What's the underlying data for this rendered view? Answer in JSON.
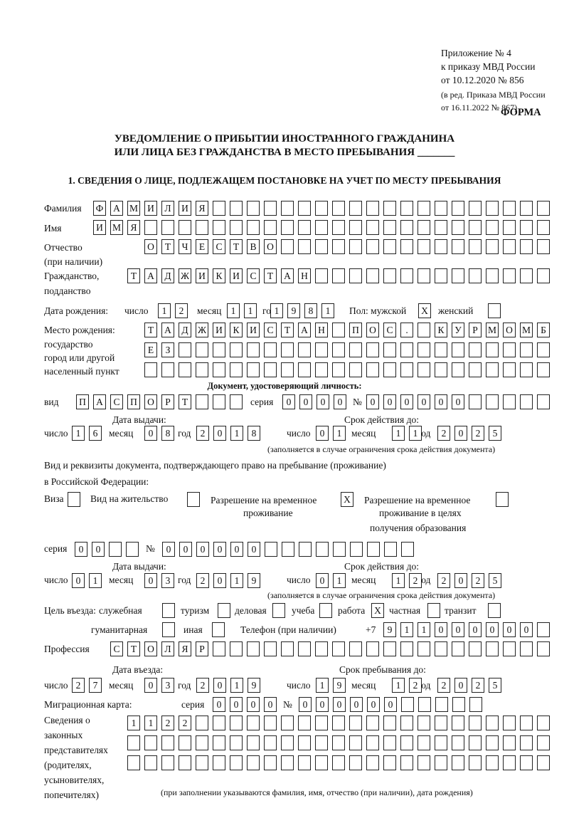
{
  "header": {
    "appendix": [
      "Приложение № 4",
      "к приказу МВД России",
      "от 10.12.2020 № 856"
    ],
    "revision": [
      "(в ред. Приказа МВД России",
      "от 16.11.2022 № 867)"
    ],
    "form_label": "ФОРМА",
    "title_line1": "УВЕДОМЛЕНИЕ О ПРИБЫТИИ ИНОСТРАННОГО ГРАЖДАНИНА",
    "title_line2": "ИЛИ ЛИЦА БЕЗ ГРАЖДАНСТВА В МЕСТО ПРЕБЫВАНИЯ _______",
    "section1": "1. СВЕДЕНИЯ О ЛИЦЕ, ПОДЛЕЖАЩЕМ ПОСТАНОВКЕ НА УЧЕТ ПО МЕСТУ ПРЕБЫВАНИЯ"
  },
  "person": {
    "surname_label": "Фамилия",
    "surname": "ФАМИЛИЯ",
    "name_label": "Имя",
    "name": "ИМЯ",
    "patronymic_label": "Отчество",
    "patronymic_label2": "(при наличии)",
    "patronymic": "ОТЧЕСТВО",
    "citizenship_label": "Гражданство,",
    "citizenship_label2": "подданство",
    "citizenship": "ТАДЖИКИСТАН",
    "birth_label": "Дата рождения:",
    "day_label": "число",
    "month_label": "месяц",
    "year_label": "год",
    "birth_day": "12",
    "birth_month": "11",
    "birth_year": "1981",
    "sex_label": "Пол: мужской",
    "male": "X",
    "female_label": "женский",
    "female": "",
    "birthplace_label": [
      "Место рождения:",
      "государство",
      "город или другой",
      "населенный пункт"
    ],
    "birthplace": [
      "ТАДЖИКИСТАН ПОС. КУРМОМБ",
      "ЕЗ",
      ""
    ]
  },
  "id_doc": {
    "heading": "Документ, удостоверяющий личность:",
    "type_label": "вид",
    "type": "ПАСПОРТ",
    "series_label": "серия",
    "series": "0000",
    "number_label": "№",
    "number": "000000",
    "issue_label": "Дата выдачи:",
    "issue_day": "16",
    "issue_month": "08",
    "issue_year": "2018",
    "valid_label": "Срок действия до:",
    "valid_day": "01",
    "valid_month": "11",
    "valid_year": "2025",
    "note": "(заполняется в случае ограничения срока действия документа)"
  },
  "stay_doc": {
    "heading1": "Вид и реквизиты документа, подтверждающего право на пребывание (проживание)",
    "heading2": "в Российской Федерации:",
    "visa_label": "Виза",
    "visa": "",
    "residence_label": "Вид на жительство",
    "residence": "",
    "trp_label": [
      "Разрешение на временное",
      "проживание"
    ],
    "trp": "X",
    "trp_edu_label": [
      "Разрешение на временное",
      "проживание в целях",
      "получения образования"
    ],
    "trp_edu": "",
    "series_label": "серия",
    "series": "00",
    "number_label": "№",
    "number": "000000",
    "issue_label": "Дата выдачи:",
    "issue_day": "01",
    "issue_month": "03",
    "issue_year": "2019",
    "valid_label": "Срок действия до:",
    "valid_day": "01",
    "valid_month": "12",
    "valid_year": "2025",
    "note": "(заполняется в случае ограничения срока действия документа)"
  },
  "purpose": {
    "label": "Цель въезда:",
    "options": [
      {
        "label": "служебная",
        "mark": ""
      },
      {
        "label": "туризм",
        "mark": ""
      },
      {
        "label": "деловая",
        "mark": ""
      },
      {
        "label": "учеба",
        "mark": ""
      },
      {
        "label": "работа",
        "mark": "X"
      },
      {
        "label": "частная",
        "mark": ""
      },
      {
        "label": "транзит",
        "mark": ""
      },
      {
        "label": "гуманитарная",
        "mark": ""
      },
      {
        "label": "иная",
        "mark": ""
      }
    ],
    "phone_label": "Телефон (при наличии)",
    "phone_prefix": "+7",
    "phone": "911000000"
  },
  "profession": {
    "label": "Профессия",
    "value": "СТОЛЯР"
  },
  "entry": {
    "entry_label": "Дата въезда:",
    "entry_day": "27",
    "entry_month": "03",
    "entry_year": "2019",
    "stay_label": "Срок пребывания до:",
    "stay_day": "19",
    "stay_month": "12",
    "stay_year": "2025"
  },
  "migration_card": {
    "label": "Миграционная карта:",
    "series_label": "серия",
    "series": "0000",
    "number_label": "№",
    "number": "000000"
  },
  "representatives": {
    "label": [
      "Сведения о",
      "законных",
      "представителях",
      "(родителях,",
      "усыновителях,",
      "попечителях)"
    ],
    "lines": [
      "1122",
      "",
      ""
    ],
    "note": "(при заполнении указываются фамилия, имя, отчество (при наличии), дата рождения)"
  }
}
